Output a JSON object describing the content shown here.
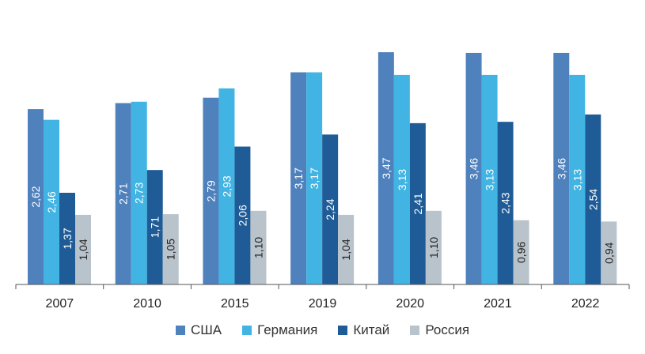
{
  "chart_data": {
    "type": "bar",
    "categories": [
      "2007",
      "2010",
      "2015",
      "2019",
      "2020",
      "2021",
      "2022"
    ],
    "series": [
      {
        "name": "США",
        "color": "#4f81bd",
        "values": [
          2.62,
          2.71,
          2.79,
          3.17,
          3.47,
          3.46,
          3.46
        ],
        "labels": [
          "2,62",
          "2,71",
          "2,79",
          "3,17",
          "3,47",
          "3,46",
          "3,46"
        ]
      },
      {
        "name": "Германия",
        "color": "#41b4e4",
        "values": [
          2.46,
          2.73,
          2.93,
          3.17,
          3.13,
          3.13,
          3.13
        ],
        "labels": [
          "2,46",
          "2,73",
          "2,93",
          "3,17",
          "3,13",
          "3,13",
          "3,13"
        ]
      },
      {
        "name": "Китай",
        "color": "#1f5c97",
        "values": [
          1.37,
          1.71,
          2.06,
          2.24,
          2.41,
          2.43,
          2.54
        ],
        "labels": [
          "1,37",
          "1,71",
          "2,06",
          "2,24",
          "2,41",
          "2,43",
          "2,54"
        ]
      },
      {
        "name": "Россия",
        "color": "#b9c3cb",
        "values": [
          1.04,
          1.05,
          1.1,
          1.04,
          1.1,
          0.96,
          0.94
        ],
        "labels": [
          "1,04",
          "1,05",
          "1,10",
          "1,04",
          "1,10",
          "0,96",
          "0,94"
        ]
      }
    ],
    "ylim": [
      0,
      3.5
    ],
    "grid": false,
    "legend_position": "bottom"
  }
}
